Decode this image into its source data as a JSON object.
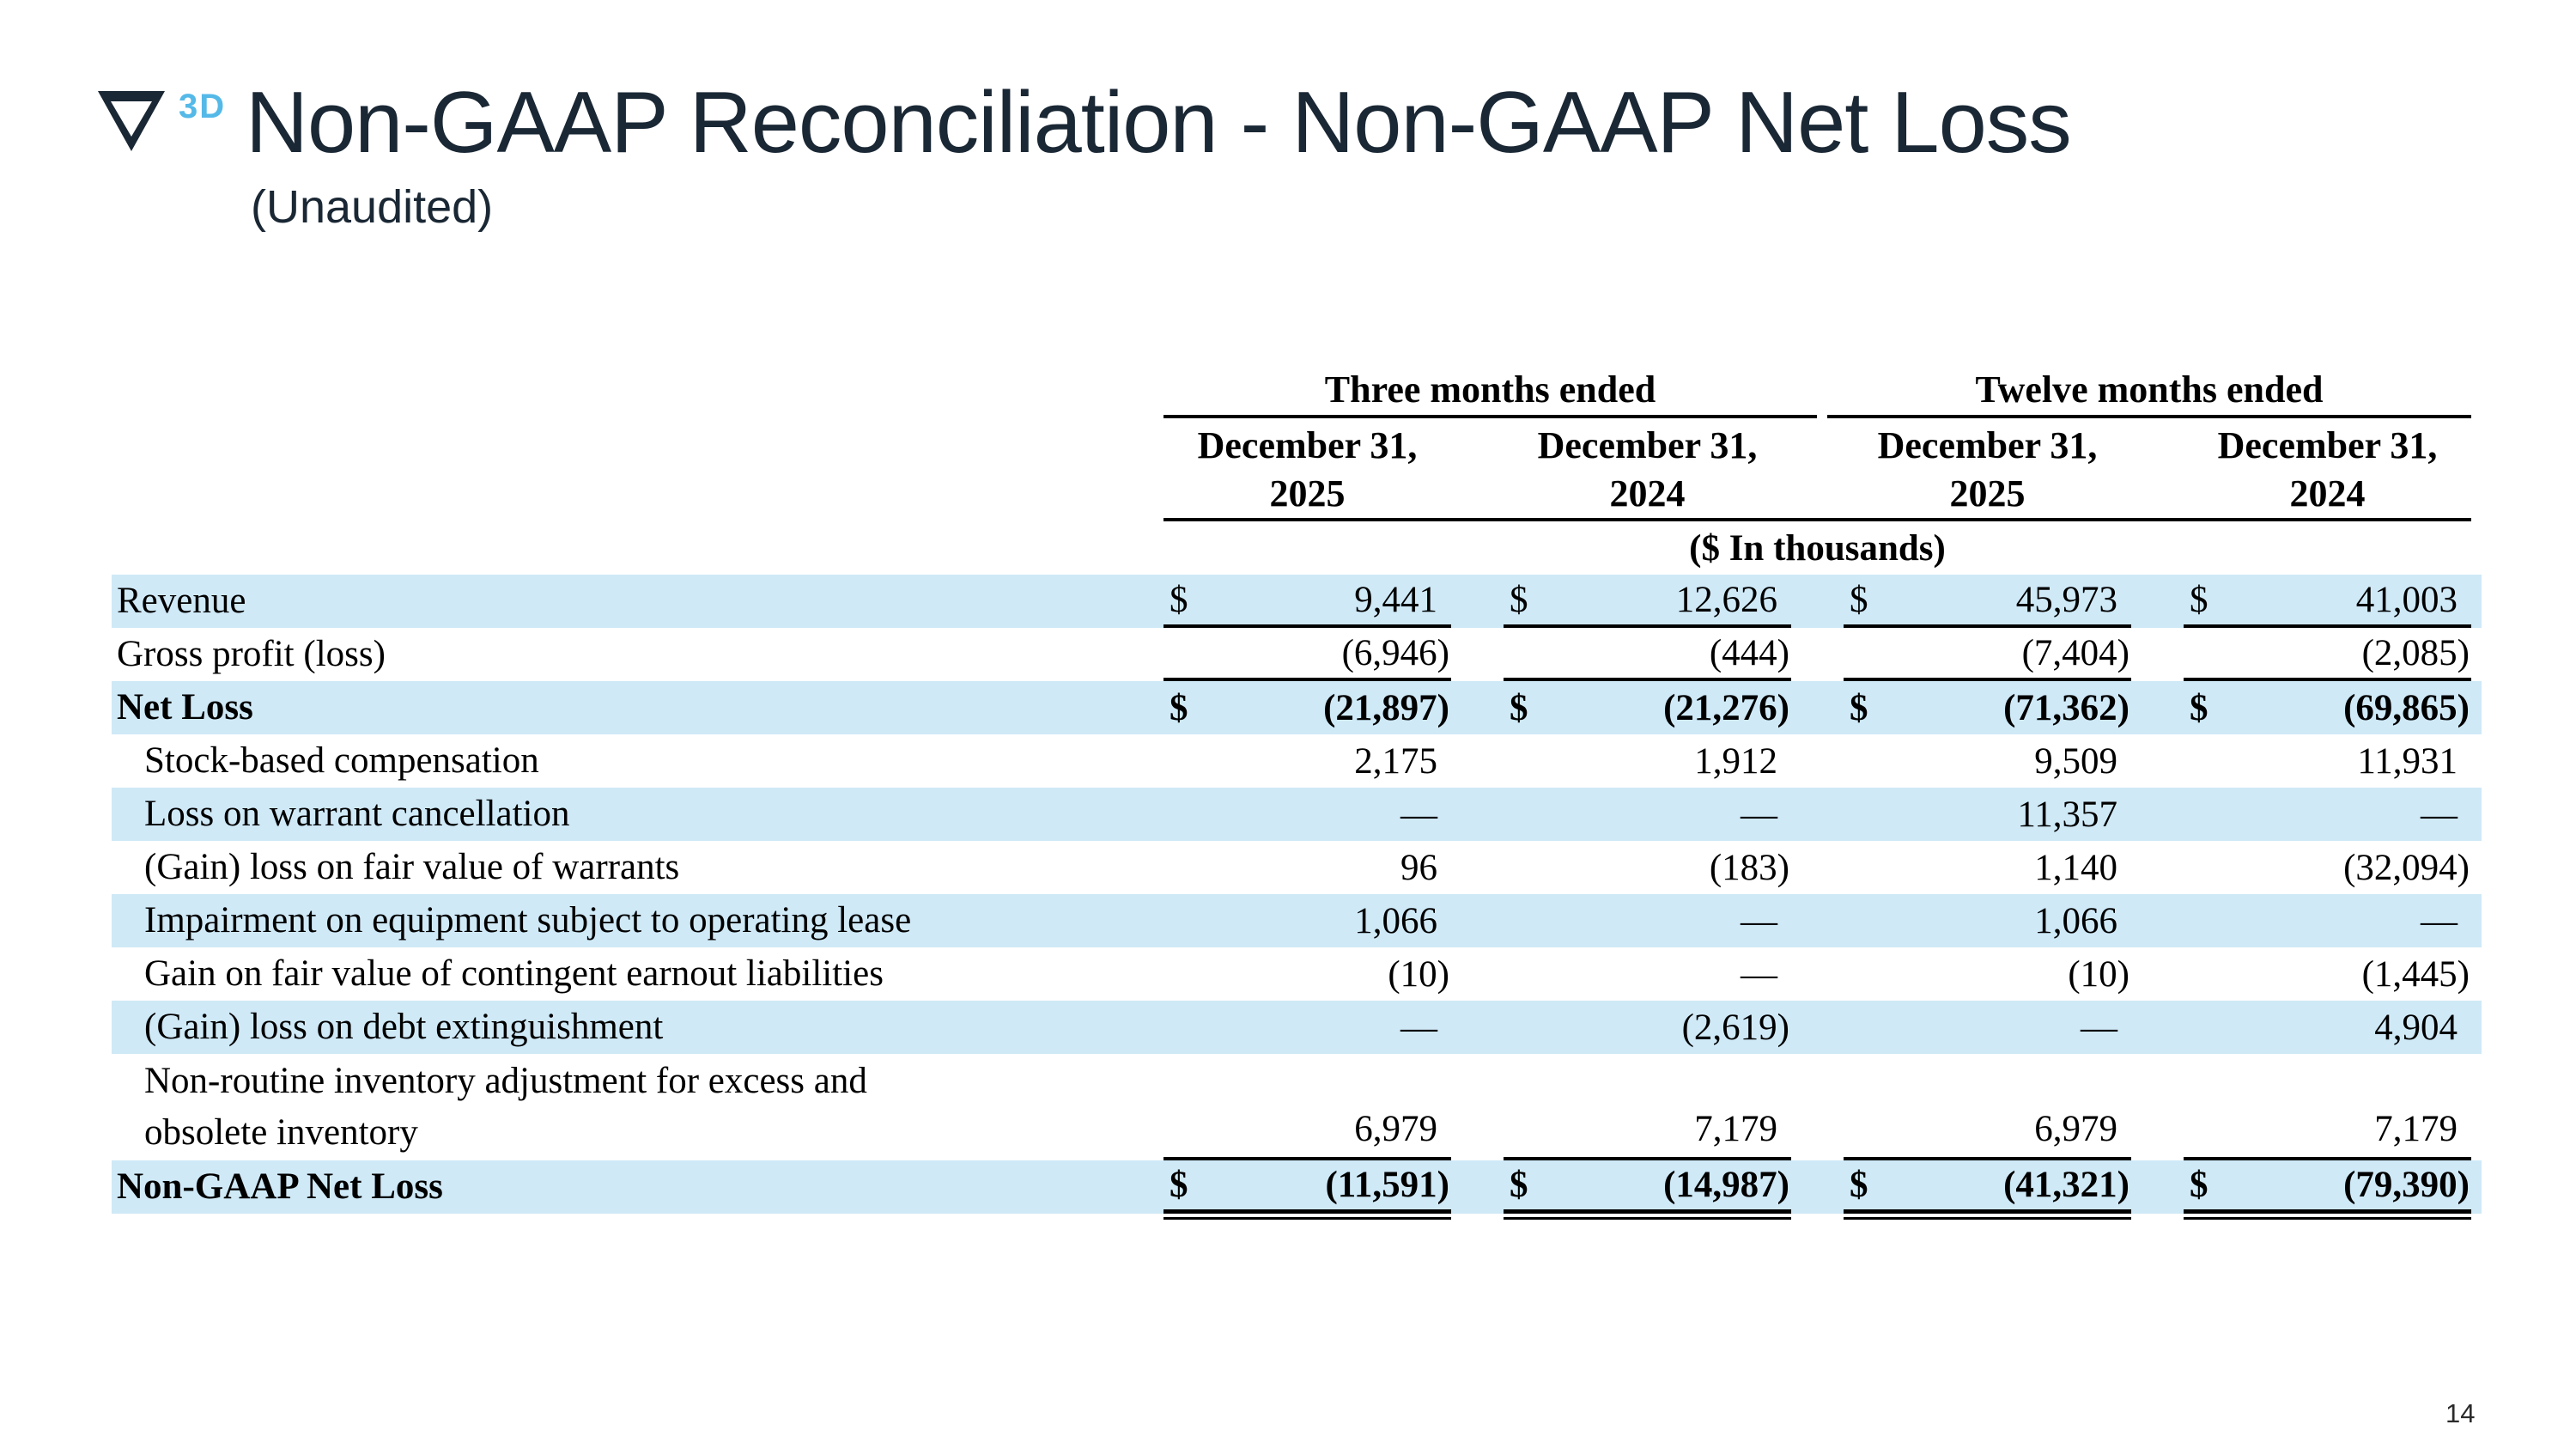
{
  "slide": {
    "logo": {
      "mark": "nabla-triangle",
      "superscript": "3D"
    },
    "title": "Non-GAAP Reconciliation - Non-GAAP Net Loss",
    "subtitle": "(Unaudited)",
    "page_number": "14"
  },
  "colors": {
    "navy": "#1a2734",
    "accent_blue": "#55b9e8",
    "row_shade": "#cfe9f7",
    "rule_black": "#000000"
  },
  "table": {
    "col_groups": [
      {
        "label": "Three months ended"
      },
      {
        "label": "Twelve months ended"
      }
    ],
    "columns": [
      {
        "line1": "December 31,",
        "line2": "2025"
      },
      {
        "line1": "December 31,",
        "line2": "2024"
      },
      {
        "line1": "December 31,",
        "line2": "2025"
      },
      {
        "line1": "December 31,",
        "line2": "2024"
      }
    ],
    "units_note": "($ In thousands)",
    "rows": [
      {
        "label": "Revenue",
        "indent": false,
        "bold": false,
        "shaded": true,
        "currency": "$",
        "underline": "single",
        "two_line": false,
        "values": [
          "9,441",
          "12,626",
          "45,973",
          "41,003"
        ]
      },
      {
        "label": "Gross profit (loss)",
        "indent": false,
        "bold": false,
        "shaded": false,
        "currency": "",
        "underline": "single",
        "two_line": false,
        "values": [
          "(6,946)",
          "(444)",
          "(7,404)",
          "(2,085)"
        ]
      },
      {
        "label": "Net Loss",
        "indent": false,
        "bold": true,
        "shaded": true,
        "currency": "$",
        "underline": "none",
        "two_line": false,
        "values": [
          "(21,897)",
          "(21,276)",
          "(71,362)",
          "(69,865)"
        ]
      },
      {
        "label": "Stock-based compensation",
        "indent": true,
        "bold": false,
        "shaded": false,
        "currency": "",
        "underline": "none",
        "two_line": false,
        "values": [
          "2,175",
          "1,912",
          "9,509",
          "11,931"
        ]
      },
      {
        "label": "Loss on warrant cancellation",
        "indent": true,
        "bold": false,
        "shaded": true,
        "currency": "",
        "underline": "none",
        "two_line": false,
        "values": [
          "—",
          "—",
          "11,357",
          "—"
        ]
      },
      {
        "label": "(Gain) loss on fair value of warrants",
        "indent": true,
        "bold": false,
        "shaded": false,
        "currency": "",
        "underline": "none",
        "two_line": false,
        "values": [
          "96",
          "(183)",
          "1,140",
          "(32,094)"
        ]
      },
      {
        "label": "Impairment on equipment subject to operating lease",
        "indent": true,
        "bold": false,
        "shaded": true,
        "currency": "",
        "underline": "none",
        "two_line": false,
        "values": [
          "1,066",
          "—",
          "1,066",
          "—"
        ]
      },
      {
        "label": "Gain on fair value of contingent earnout liabilities",
        "indent": true,
        "bold": false,
        "shaded": false,
        "currency": "",
        "underline": "none",
        "two_line": false,
        "values": [
          "(10)",
          "—",
          "(10)",
          "(1,445)"
        ]
      },
      {
        "label": "(Gain) loss on debt extinguishment",
        "indent": true,
        "bold": false,
        "shaded": true,
        "currency": "",
        "underline": "none",
        "two_line": false,
        "values": [
          "—",
          "(2,619)",
          "—",
          "4,904"
        ]
      },
      {
        "label": "Non-routine inventory adjustment for excess and obsolete inventory",
        "indent": true,
        "bold": false,
        "shaded": false,
        "currency": "",
        "underline": "single",
        "two_line": true,
        "values": [
          "6,979",
          "7,179",
          "6,979",
          "7,179"
        ]
      },
      {
        "label": "Non-GAAP Net Loss",
        "indent": false,
        "bold": true,
        "shaded": true,
        "currency": "$",
        "underline": "double",
        "two_line": false,
        "values": [
          "(11,591)",
          "(14,987)",
          "(41,321)",
          "(79,390)"
        ]
      }
    ]
  }
}
